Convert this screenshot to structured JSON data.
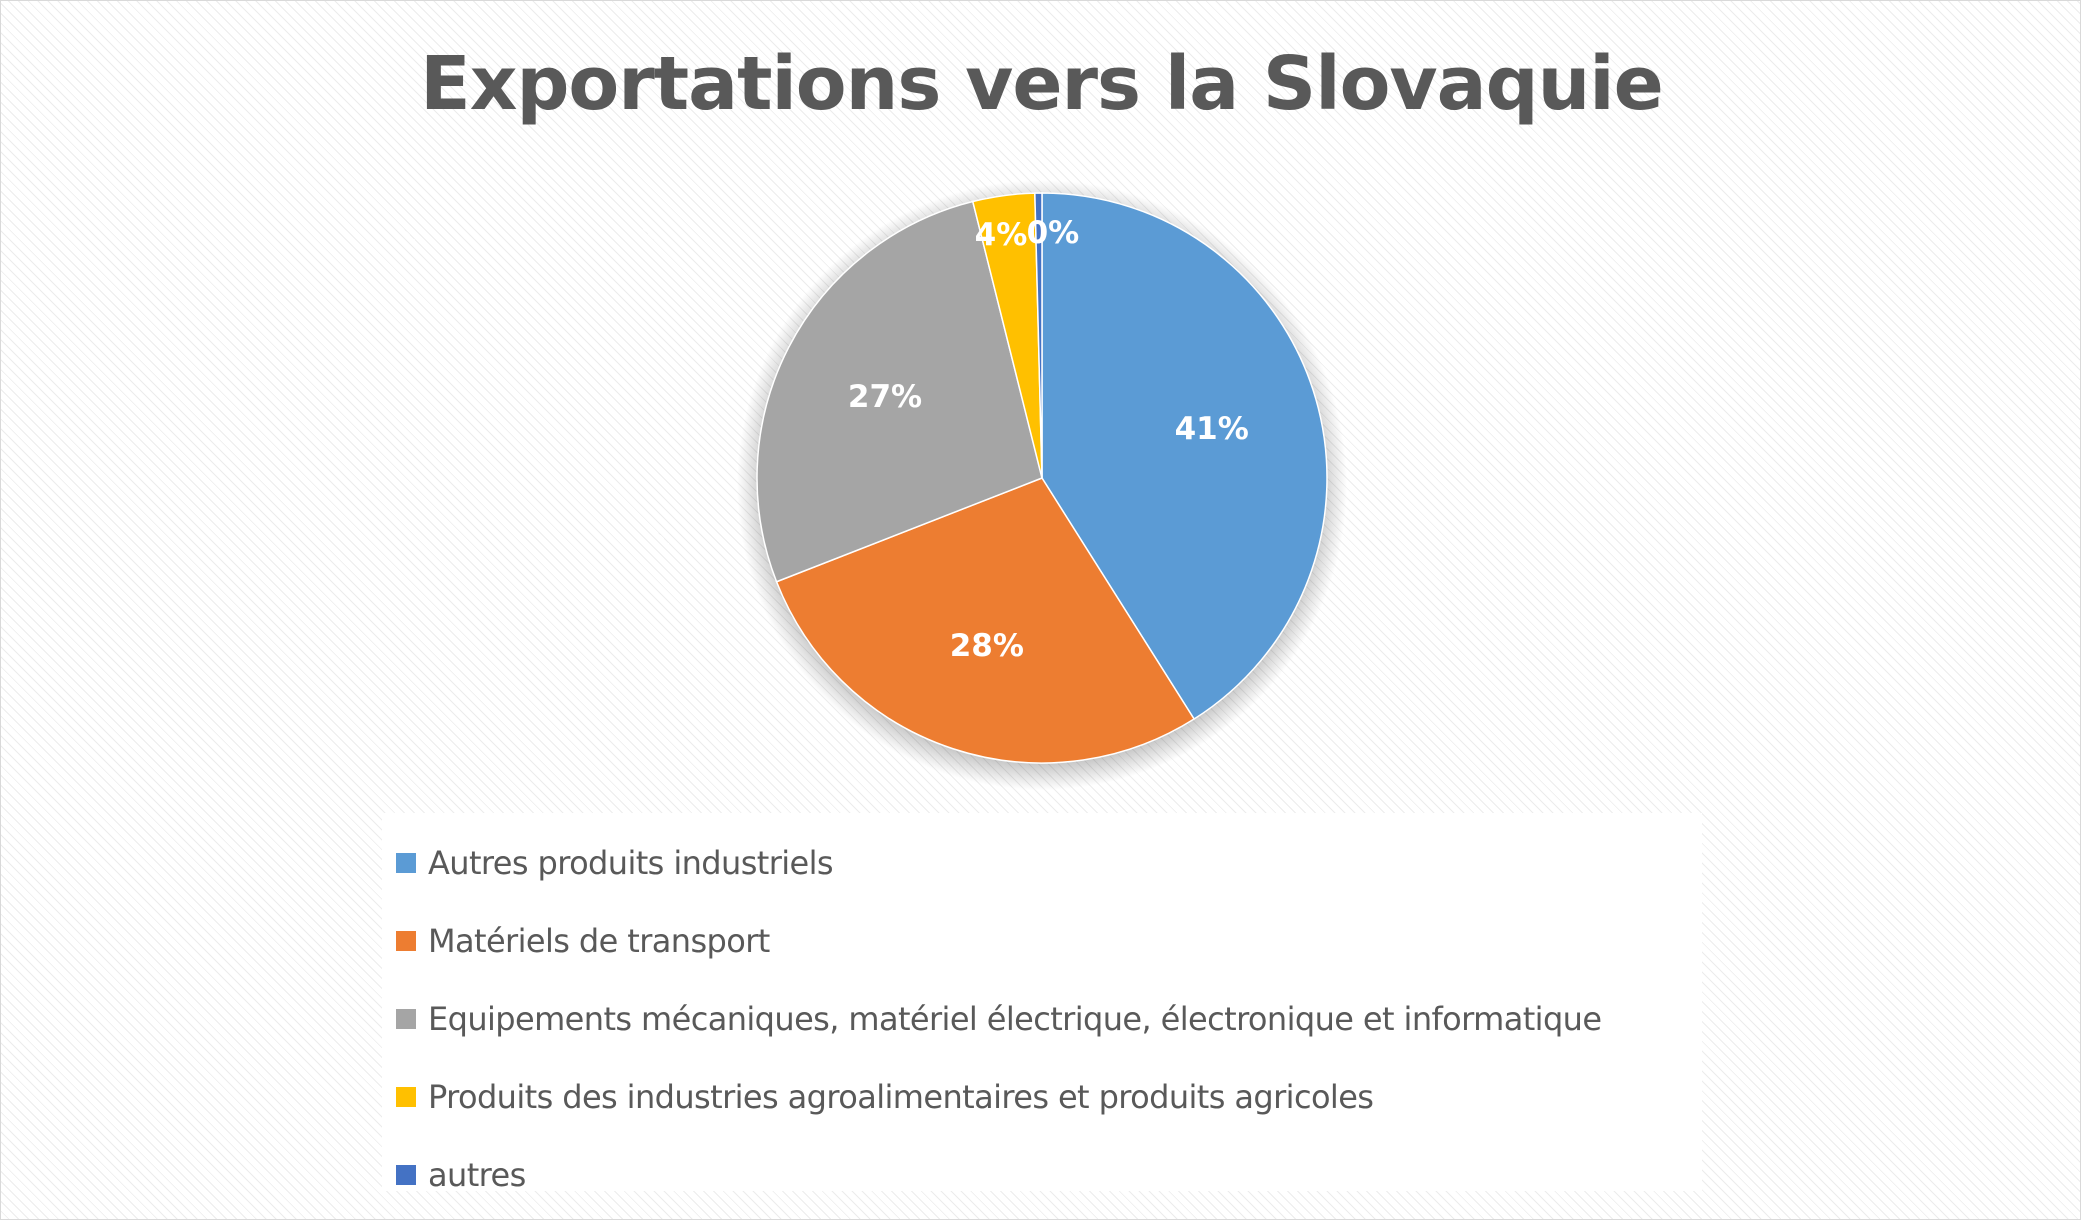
{
  "chart_data": {
    "type": "pie",
    "title": "Exportations vers la Slovaquie",
    "slices": [
      {
        "name": "Autres produits industriels",
        "value": 41,
        "label": "41%",
        "color": "#5b9bd5"
      },
      {
        "name": "Matériels de transport",
        "value": 28,
        "label": "28%",
        "color": "#ed7d31"
      },
      {
        "name": "Equipements mécaniques, matériel électrique, électronique et informatique",
        "value": 27,
        "label": "27%",
        "color": "#a5a5a5"
      },
      {
        "name": "Produits des industries agroalimentaires et produits agricoles",
        "value": 3.5,
        "label": "4%",
        "color": "#ffc000"
      },
      {
        "name": "autres",
        "value": 0.4,
        "label": "0%",
        "color": "#4472c4"
      }
    ],
    "legend_position": "bottom",
    "start_angle": "top",
    "direction": "clockwise"
  }
}
